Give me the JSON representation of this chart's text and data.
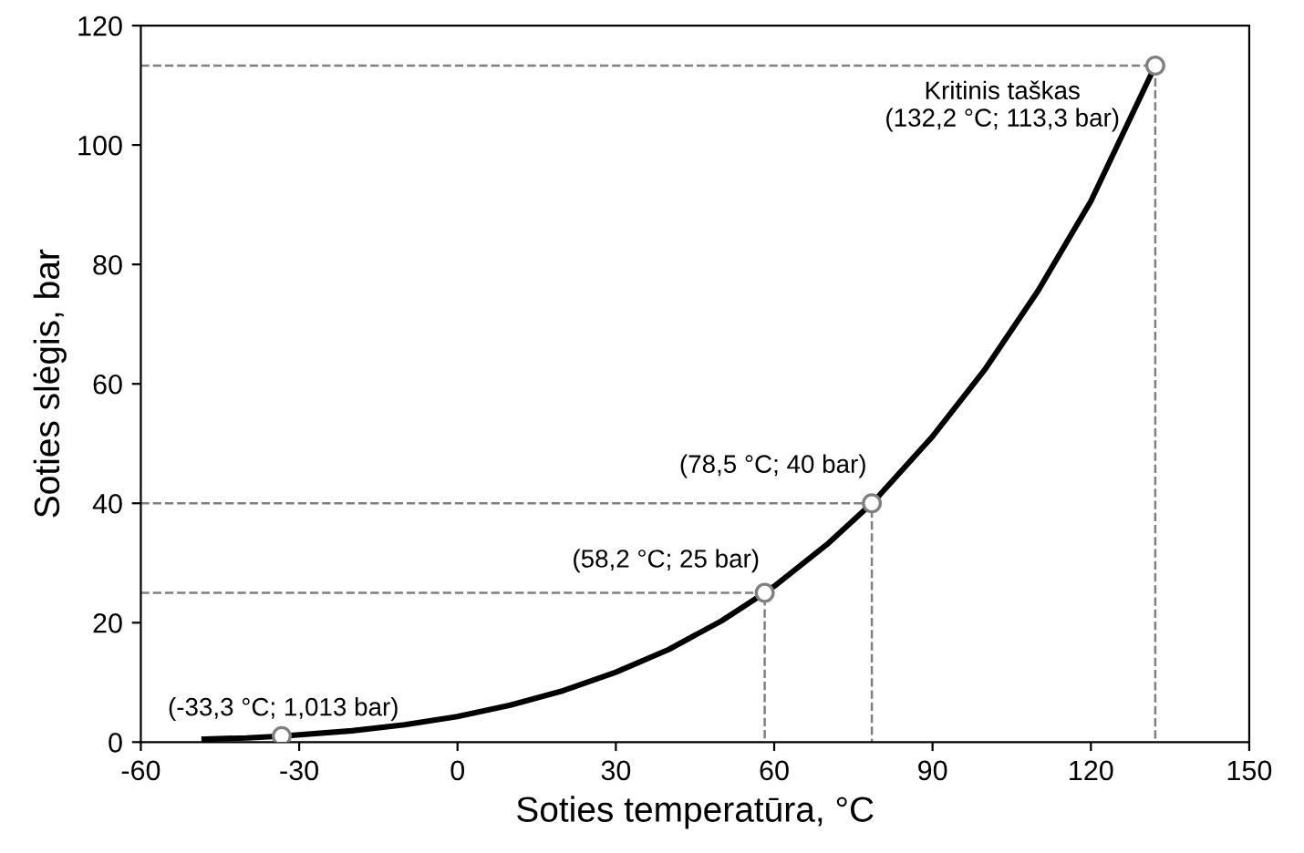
{
  "chart_data": {
    "type": "line",
    "xlabel": "Soties temperatūra, °C",
    "ylabel": "Soties slėgis, bar",
    "xlim": [
      -60,
      150
    ],
    "xticks": [
      -60,
      -30,
      0,
      30,
      60,
      90,
      120,
      150
    ],
    "ylim": [
      0,
      120
    ],
    "yticks": [
      0,
      20,
      40,
      60,
      80,
      100,
      120
    ],
    "grid": false,
    "legend": false,
    "series": [
      {
        "color": "#000000",
        "line_style": "solid",
        "marker": "none",
        "x": [
          -48,
          -40,
          -33.3,
          -20,
          -10,
          0,
          10,
          20,
          30,
          40,
          50,
          58.2,
          60,
          70,
          78.5,
          80,
          90,
          100,
          110,
          120,
          132.2
        ],
        "values": [
          0.5,
          0.7,
          1,
          1.9,
          2.9,
          4.3,
          6.2,
          8.6,
          11.7,
          15.5,
          20.3,
          25,
          26.1,
          33.1,
          40,
          41.4,
          51.2,
          62.5,
          75.6,
          90.6,
          113.3
        ]
      },
      {
        "type": "line",
        "color": "#808080",
        "line_style": "dashed",
        "marker": "none",
        "x": [
          -60,
          58.2,
          58.2
        ],
        "values": [
          25,
          25,
          0
        ]
      },
      {
        "type": "line",
        "color": "#808080",
        "line_style": "dashed",
        "marker": "none",
        "x": [
          -60,
          78.5,
          78.5
        ],
        "values": [
          40,
          40,
          0
        ]
      },
      {
        "type": "line",
        "color": "#808080",
        "line_style": "dashed",
        "marker": "none",
        "x": [
          -60,
          132.2,
          132.2
        ],
        "values": [
          113.3,
          113.3,
          0
        ]
      },
      {
        "type": "scatter",
        "color": "#808080",
        "marker": "circle",
        "x": [
          -33.3,
          58.2,
          78.5,
          132.2
        ],
        "values": [
          1,
          25,
          40,
          113.3
        ]
      }
    ],
    "annotations": [
      {
        "text": "(-33,3 °C; 1,013 bar)",
        "x": -33.3,
        "y": 1.013
      },
      {
        "text": "(58,2 °C; 25 bar)",
        "x": 58.2,
        "y": 25
      },
      {
        "text": "(78,5 °C; 40 bar)",
        "x": 78.5,
        "y": 40
      },
      {
        "text": "Kritinis taškas\n(132,2 °C; 113,3 bar)",
        "x": 132.2,
        "y": 113.3
      }
    ]
  }
}
